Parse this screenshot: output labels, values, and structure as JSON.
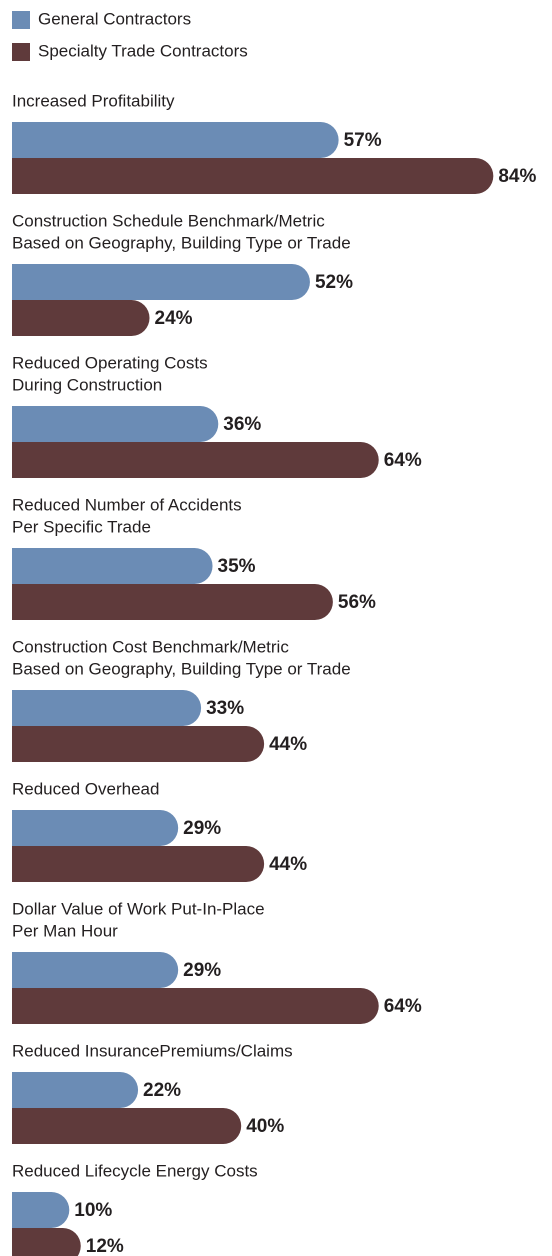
{
  "chart_data": {
    "type": "bar",
    "orientation": "horizontal",
    "categories": [
      [
        "Increased Profitability"
      ],
      [
        "Construction Schedule Benchmark/Metric",
        "Based on Geography, Building Type or Trade"
      ],
      [
        "Reduced Operating Costs",
        "During Construction"
      ],
      [
        "Reduced Number of Accidents",
        "Per Specific Trade"
      ],
      [
        "Construction Cost Benchmark/Metric",
        "Based on Geography, Building Type or Trade"
      ],
      [
        "Reduced Overhead"
      ],
      [
        "Dollar Value of Work Put-In-Place",
        "Per Man Hour"
      ],
      [
        "Reduced InsurancePremiums/Claims"
      ],
      [
        "Reduced Lifecycle Energy Costs"
      ]
    ],
    "series": [
      {
        "name": "General Contractors",
        "color": "#6b8cb5",
        "values": [
          57,
          52,
          36,
          35,
          33,
          29,
          29,
          22,
          10
        ],
        "value_labels": [
          "57%",
          "52%",
          "36%",
          "35%",
          "33%",
          "29%",
          "29%",
          "22%",
          "10%"
        ]
      },
      {
        "name": "Specialty Trade Contractors",
        "color": "#5f3a3b",
        "values": [
          84,
          24,
          64,
          56,
          44,
          44,
          64,
          40,
          12
        ],
        "value_labels": [
          "84%",
          "24%",
          "64%",
          "56%",
          "44%",
          "44%",
          "64%",
          "40%",
          "12%"
        ]
      }
    ],
    "legend": "top-left"
  }
}
